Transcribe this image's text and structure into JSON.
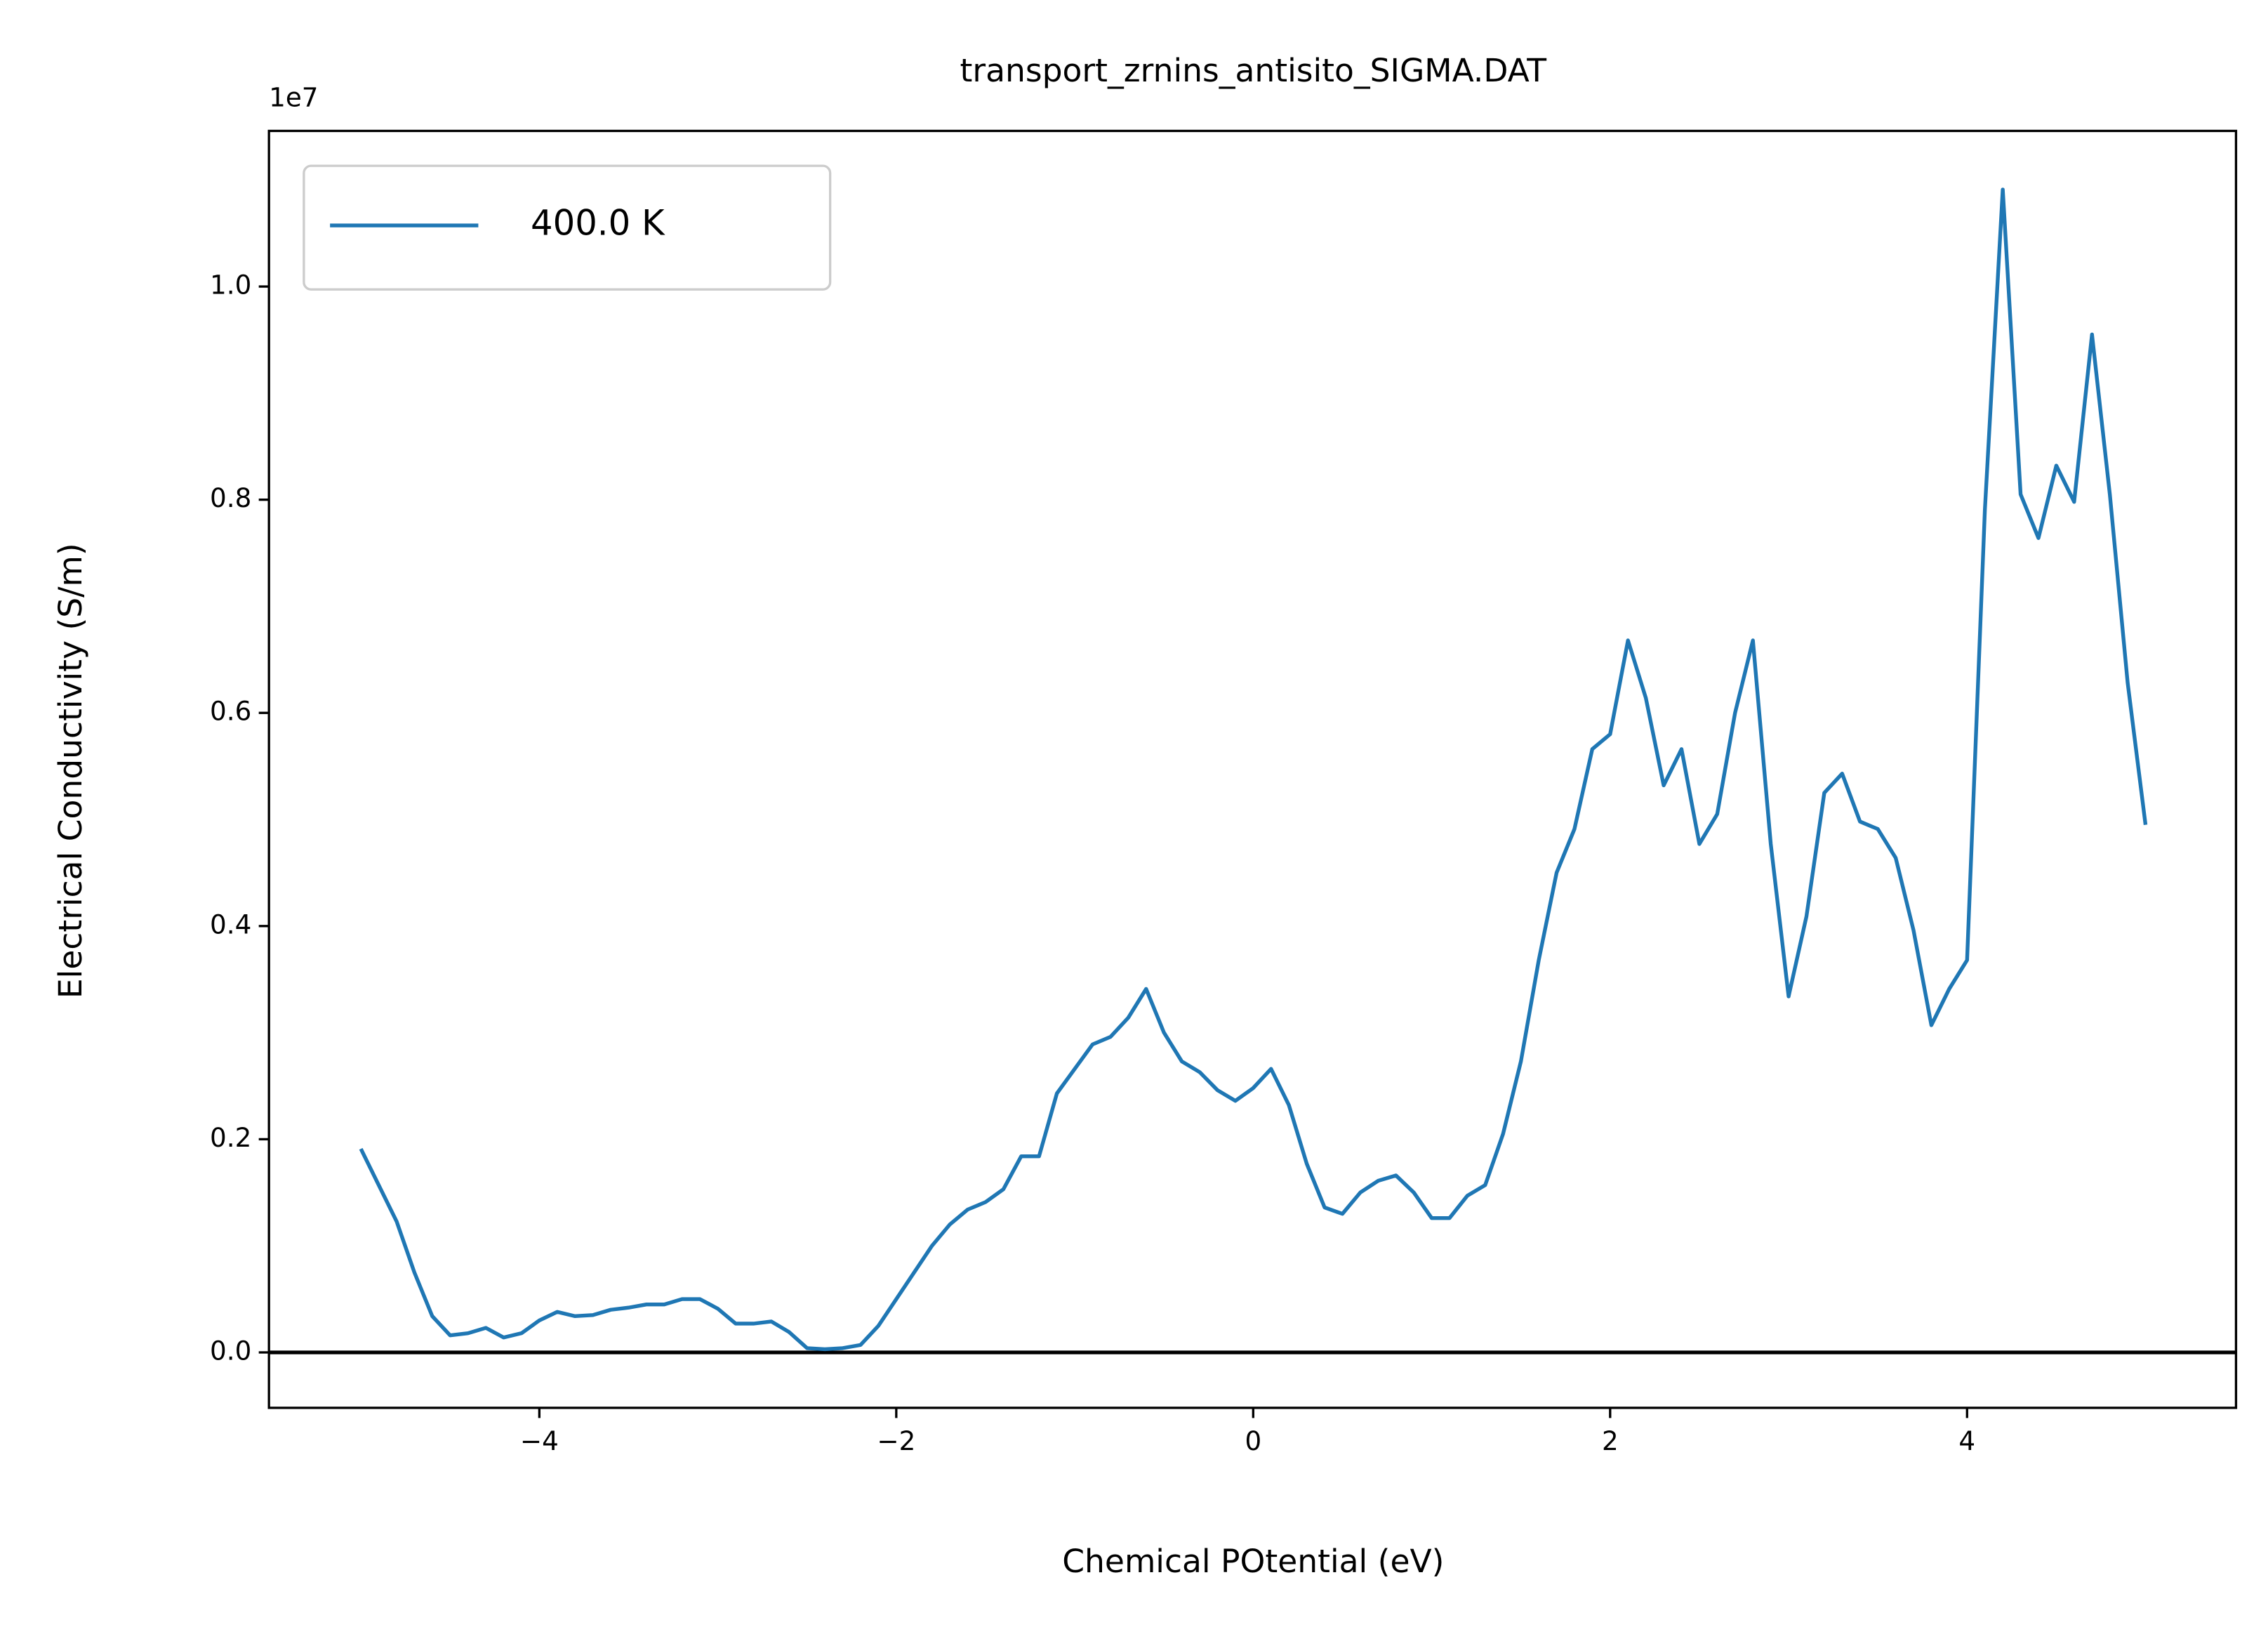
{
  "chart_data": {
    "type": "line",
    "title": "transport_zrnins_antisito_SIGMA.DAT",
    "x_label": "Chemical POtential (eV)",
    "y_label": "Electrical Conductivity (S/m)",
    "y_offset_label": "1e7",
    "xlim": [
      -5.515,
      5.507
    ],
    "ylim": [
      -0.052,
      1.146
    ],
    "xticks": [
      {
        "value": -4,
        "label": "−4"
      },
      {
        "value": -2,
        "label": "−2"
      },
      0,
      2,
      4
    ],
    "yticks": [
      {
        "value": 0,
        "label": "0.0"
      },
      0.2,
      0.4,
      0.6,
      0.8,
      {
        "value": 1,
        "label": "1.0"
      }
    ],
    "hline": 0,
    "legend": "upper left",
    "x": [
      -5.0,
      -4.9,
      -4.8,
      -4.7,
      -4.6,
      -4.5,
      -4.4,
      -4.3,
      -4.2,
      -4.1,
      -4.0,
      -3.9,
      -3.8,
      -3.7,
      -3.6,
      -3.5,
      -3.4,
      -3.3,
      -3.2,
      -3.1,
      -3.0,
      -2.9,
      -2.8,
      -2.7,
      -2.6,
      -2.5,
      -2.4,
      -2.3,
      -2.2,
      -2.1,
      -2.0,
      -1.9,
      -1.8,
      -1.7,
      -1.6,
      -1.5,
      -1.4,
      -1.3,
      -1.2,
      -1.1,
      -1.0,
      -0.9,
      -0.8,
      -0.7,
      -0.6,
      -0.5,
      -0.4,
      -0.3,
      -0.2,
      -0.1,
      0.0,
      0.1,
      0.2,
      0.3,
      0.4,
      0.5,
      0.6,
      0.7,
      0.8,
      0.9,
      1.0,
      1.1,
      1.2,
      1.3,
      1.4,
      1.5,
      1.6,
      1.7,
      1.8,
      1.9,
      2.0,
      2.1,
      2.2,
      2.3,
      2.4,
      2.5,
      2.6,
      2.7,
      2.8,
      2.9,
      3.0,
      3.1,
      3.2,
      3.3,
      3.4,
      3.5,
      3.6,
      3.7,
      3.8,
      3.9,
      4.0,
      4.1,
      4.2,
      4.3,
      4.4,
      4.5,
      4.6,
      4.7,
      4.8,
      4.9,
      5.0
    ],
    "series": [
      {
        "name": "400.0 K",
        "color": "#1f77b4",
        "values": [
          0.191,
          0.157,
          0.123,
          0.075,
          0.034,
          0.016,
          0.018,
          0.023,
          0.014,
          0.018,
          0.03,
          0.038,
          0.034,
          0.035,
          0.04,
          0.042,
          0.045,
          0.045,
          0.05,
          0.05,
          0.041,
          0.027,
          0.027,
          0.029,
          0.019,
          0.004,
          0.003,
          0.004,
          0.007,
          0.025,
          0.05,
          0.075,
          0.1,
          0.12,
          0.134,
          0.141,
          0.153,
          0.184,
          0.184,
          0.243,
          0.266,
          0.289,
          0.296,
          0.314,
          0.341,
          0.3,
          0.273,
          0.263,
          0.246,
          0.236,
          0.248,
          0.266,
          0.232,
          0.177,
          0.136,
          0.13,
          0.15,
          0.161,
          0.166,
          0.15,
          0.126,
          0.126,
          0.147,
          0.157,
          0.205,
          0.273,
          0.368,
          0.45,
          0.491,
          0.566,
          0.58,
          0.668,
          0.614,
          0.532,
          0.566,
          0.477,
          0.505,
          0.6,
          0.668,
          0.477,
          0.334,
          0.409,
          0.525,
          0.543,
          0.498,
          0.491,
          0.464,
          0.396,
          0.307,
          0.341,
          0.368,
          0.791,
          1.091,
          0.805,
          0.764,
          0.832,
          0.798,
          0.955,
          0.805,
          0.628,
          0.495
        ]
      }
    ]
  }
}
